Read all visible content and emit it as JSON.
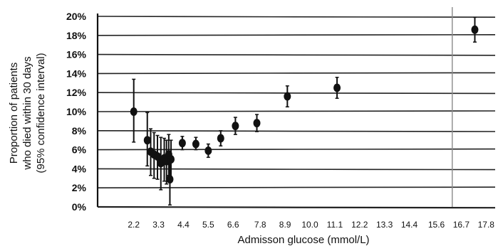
{
  "chart_data": {
    "type": "scatter",
    "title": "",
    "xlabel": "Admisson glucose (mmol/L)",
    "ylabel_lines": [
      "Proportion of patients",
      "who died within 30 days",
      "(95% confidence interval)"
    ],
    "x_tick_labels": [
      "2.2",
      "3.3",
      "4.4",
      "5.5",
      "6.6",
      "7.8",
      "8.9",
      "10.0",
      "11.1",
      "12.2",
      "13.3",
      "14.4",
      "15.6",
      "16.7",
      "17.8"
    ],
    "x_tick_values": [
      2.2,
      3.3,
      4.4,
      5.5,
      6.6,
      7.8,
      8.9,
      10.0,
      11.1,
      12.2,
      13.3,
      14.4,
      15.6,
      16.7,
      17.8
    ],
    "y_tick_labels": [
      "0%",
      "2%",
      "4%",
      "6%",
      "8%",
      "10%",
      "12%",
      "14%",
      "16%",
      "18%",
      "20%"
    ],
    "y_tick_values": [
      0,
      2,
      4,
      6,
      8,
      10,
      12,
      14,
      16,
      18,
      20
    ],
    "xlim": [
      0.6,
      18.2
    ],
    "ylim": [
      0,
      20
    ],
    "grid": "horizontal",
    "reference_line_x": 16.3,
    "series": [
      {
        "points": [
          {
            "x": 2.2,
            "y": 10.0,
            "lo": 6.8,
            "hi": 13.4
          },
          {
            "x": 2.8,
            "y": 7.0,
            "lo": 4.3,
            "hi": 9.9
          },
          {
            "x": 2.95,
            "y": 5.8,
            "lo": 3.3,
            "hi": 8.2
          },
          {
            "x": 3.1,
            "y": 5.5,
            "lo": 3.0,
            "hi": 7.8
          },
          {
            "x": 3.25,
            "y": 5.3,
            "lo": 2.9,
            "hi": 7.5
          },
          {
            "x": 3.4,
            "y": 4.6,
            "lo": 1.8,
            "hi": 7.3
          },
          {
            "x": 3.55,
            "y": 5.1,
            "lo": 2.7,
            "hi": 7.2
          },
          {
            "x": 3.65,
            "y": 4.8,
            "lo": 2.4,
            "hi": 7.0
          },
          {
            "x": 3.75,
            "y": 5.5,
            "lo": 3.3,
            "hi": 7.6
          },
          {
            "x": 3.85,
            "y": 5.0,
            "lo": 3.0,
            "hi": 7.0
          },
          {
            "x": 3.8,
            "y": 2.9,
            "lo": 0.2,
            "hi": 5.2
          },
          {
            "x": 4.35,
            "y": 6.7,
            "lo": 6.0,
            "hi": 7.4
          },
          {
            "x": 4.95,
            "y": 6.6,
            "lo": 6.0,
            "hi": 7.3
          },
          {
            "x": 5.5,
            "y": 5.9,
            "lo": 5.2,
            "hi": 6.6
          },
          {
            "x": 6.05,
            "y": 7.2,
            "lo": 6.4,
            "hi": 8.0
          },
          {
            "x": 6.7,
            "y": 8.5,
            "lo": 7.6,
            "hi": 9.4
          },
          {
            "x": 7.65,
            "y": 8.8,
            "lo": 7.9,
            "hi": 9.7
          },
          {
            "x": 9.0,
            "y": 11.6,
            "lo": 10.5,
            "hi": 12.7
          },
          {
            "x": 11.2,
            "y": 12.5,
            "lo": 11.4,
            "hi": 13.6
          },
          {
            "x": 17.3,
            "y": 18.6,
            "lo": 17.3,
            "hi": 19.9
          }
        ]
      }
    ]
  },
  "colors": {
    "ink": "#111111",
    "grid": "#222222",
    "reference": "#8a8a8a",
    "background": "#ffffff"
  }
}
